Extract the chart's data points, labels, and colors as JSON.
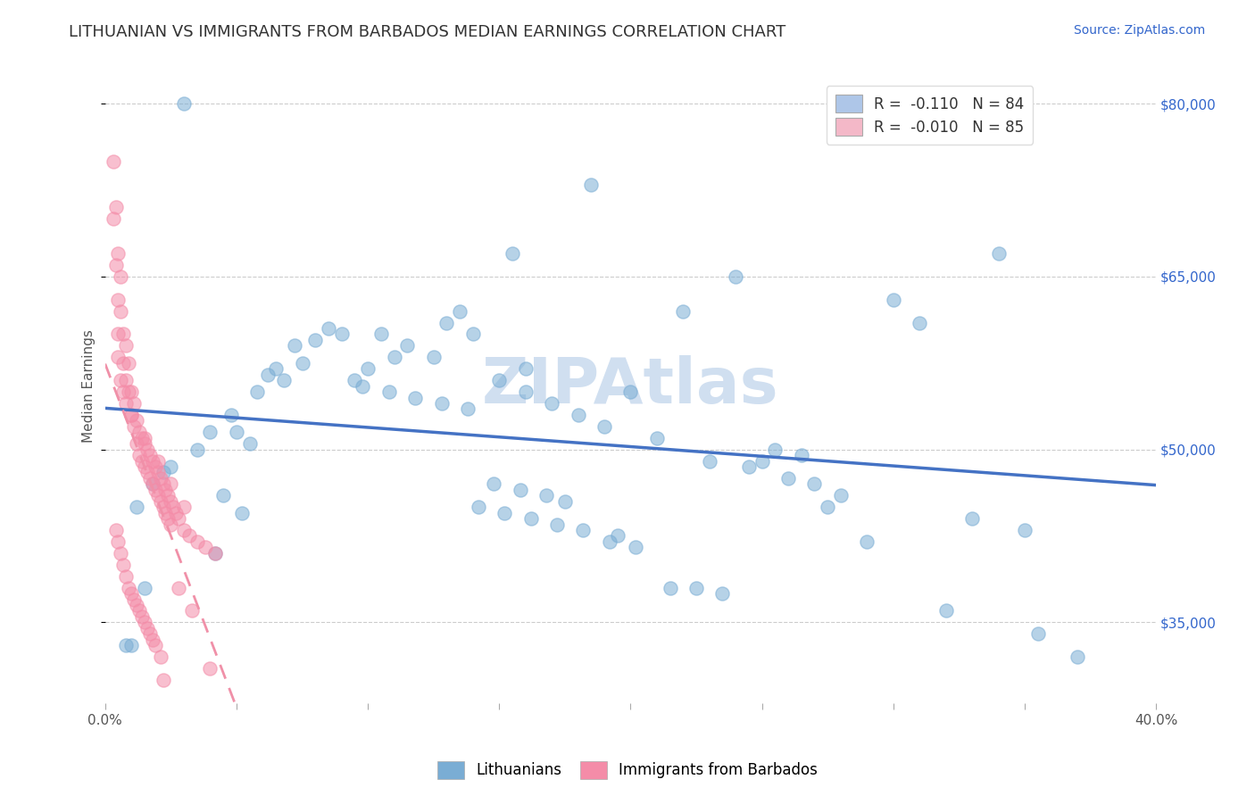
{
  "title": "LITHUANIAN VS IMMIGRANTS FROM BARBADOS MEDIAN EARNINGS CORRELATION CHART",
  "source_text": "Source: ZipAtlas.com",
  "ylabel": "Median Earnings",
  "xlim": [
    0.0,
    0.4
  ],
  "ylim": [
    28000,
    83000
  ],
  "xticks": [
    0.0,
    0.05,
    0.1,
    0.15,
    0.2,
    0.25,
    0.3,
    0.35,
    0.4
  ],
  "xticklabels": [
    "0.0%",
    "",
    "",
    "",
    "",
    "",
    "",
    "",
    "40.0%"
  ],
  "ytick_values": [
    35000,
    50000,
    65000,
    80000
  ],
  "ytick_labels": [
    "$35,000",
    "$50,000",
    "$65,000",
    "$80,000"
  ],
  "legend_r_entries": [
    {
      "label": "R =  -0.110   N = 84",
      "facecolor": "#aec6e8"
    },
    {
      "label": "R =  -0.010   N = 85",
      "facecolor": "#f4b8c8"
    }
  ],
  "watermark": "ZIPAtlas",
  "watermark_color": "#d0dff0",
  "blue_color": "#7aadd4",
  "pink_color": "#f48ca8",
  "blue_line_color": "#4472c4",
  "pink_line_color": "#f090a8",
  "background_color": "#ffffff",
  "grid_color": "#cccccc",
  "blue_scatter_x": [
    0.03,
    0.185,
    0.155,
    0.24,
    0.34,
    0.135,
    0.22,
    0.09,
    0.065,
    0.058,
    0.048,
    0.04,
    0.035,
    0.025,
    0.018,
    0.012,
    0.16,
    0.2,
    0.105,
    0.115,
    0.125,
    0.085,
    0.08,
    0.072,
    0.3,
    0.31,
    0.05,
    0.255,
    0.265,
    0.148,
    0.158,
    0.168,
    0.192,
    0.202,
    0.225,
    0.235,
    0.275,
    0.33,
    0.35,
    0.37,
    0.095,
    0.1,
    0.11,
    0.13,
    0.14,
    0.15,
    0.16,
    0.17,
    0.18,
    0.19,
    0.21,
    0.23,
    0.245,
    0.26,
    0.27,
    0.28,
    0.062,
    0.068,
    0.075,
    0.142,
    0.152,
    0.162,
    0.172,
    0.182,
    0.055,
    0.045,
    0.042,
    0.052,
    0.098,
    0.108,
    0.118,
    0.128,
    0.138,
    0.175,
    0.195,
    0.215,
    0.25,
    0.32,
    0.355,
    0.29,
    0.022,
    0.015,
    0.01,
    0.008
  ],
  "blue_scatter_y": [
    80000,
    73000,
    67000,
    65000,
    67000,
    62000,
    62000,
    60000,
    57000,
    55000,
    53000,
    51500,
    50000,
    48500,
    47000,
    45000,
    57000,
    55000,
    60000,
    59000,
    58000,
    60500,
    59500,
    59000,
    63000,
    61000,
    51500,
    50000,
    49500,
    47000,
    46500,
    46000,
    42000,
    41500,
    38000,
    37500,
    45000,
    44000,
    43000,
    32000,
    56000,
    57000,
    58000,
    61000,
    60000,
    56000,
    55000,
    54000,
    53000,
    52000,
    51000,
    49000,
    48500,
    47500,
    47000,
    46000,
    56500,
    56000,
    57500,
    45000,
    44500,
    44000,
    43500,
    43000,
    50500,
    46000,
    41000,
    44500,
    55500,
    55000,
    54500,
    54000,
    53500,
    45500,
    42500,
    38000,
    49000,
    36000,
    34000,
    42000,
    48000,
    38000,
    33000,
    33000
  ],
  "pink_scatter_x": [
    0.003,
    0.004,
    0.005,
    0.005,
    0.005,
    0.006,
    0.006,
    0.007,
    0.007,
    0.008,
    0.008,
    0.009,
    0.009,
    0.01,
    0.01,
    0.011,
    0.011,
    0.012,
    0.012,
    0.013,
    0.013,
    0.014,
    0.014,
    0.015,
    0.015,
    0.016,
    0.016,
    0.017,
    0.017,
    0.018,
    0.018,
    0.019,
    0.019,
    0.02,
    0.02,
    0.021,
    0.021,
    0.022,
    0.022,
    0.023,
    0.023,
    0.024,
    0.024,
    0.025,
    0.025,
    0.026,
    0.027,
    0.028,
    0.03,
    0.032,
    0.035,
    0.038,
    0.042,
    0.005,
    0.006,
    0.007,
    0.008,
    0.003,
    0.004,
    0.01,
    0.015,
    0.02,
    0.025,
    0.03,
    0.004,
    0.005,
    0.006,
    0.007,
    0.008,
    0.009,
    0.01,
    0.011,
    0.012,
    0.013,
    0.014,
    0.015,
    0.016,
    0.017,
    0.018,
    0.019,
    0.021,
    0.022,
    0.028,
    0.033,
    0.04
  ],
  "pink_scatter_y": [
    75000,
    71000,
    67000,
    63000,
    60000,
    65000,
    62000,
    60000,
    57500,
    59000,
    56000,
    57500,
    55000,
    55000,
    53000,
    54000,
    52000,
    52500,
    50500,
    51500,
    49500,
    51000,
    49000,
    50500,
    48500,
    50000,
    48000,
    49500,
    47500,
    49000,
    47000,
    48500,
    46500,
    48000,
    46000,
    47500,
    45500,
    47000,
    45000,
    46500,
    44500,
    46000,
    44000,
    45500,
    43500,
    45000,
    44500,
    44000,
    43000,
    42500,
    42000,
    41500,
    41000,
    58000,
    56000,
    55000,
    54000,
    70000,
    66000,
    53000,
    51000,
    49000,
    47000,
    45000,
    43000,
    42000,
    41000,
    40000,
    39000,
    38000,
    37500,
    37000,
    36500,
    36000,
    35500,
    35000,
    34500,
    34000,
    33500,
    33000,
    32000,
    30000,
    38000,
    36000,
    31000
  ],
  "title_fontsize": 13,
  "source_fontsize": 10,
  "axis_label_fontsize": 11,
  "tick_fontsize": 11,
  "legend_fontsize": 12,
  "watermark_fontsize": 52,
  "dot_size": 120,
  "dot_alpha": 0.55,
  "dot_linewidth": 1.0
}
